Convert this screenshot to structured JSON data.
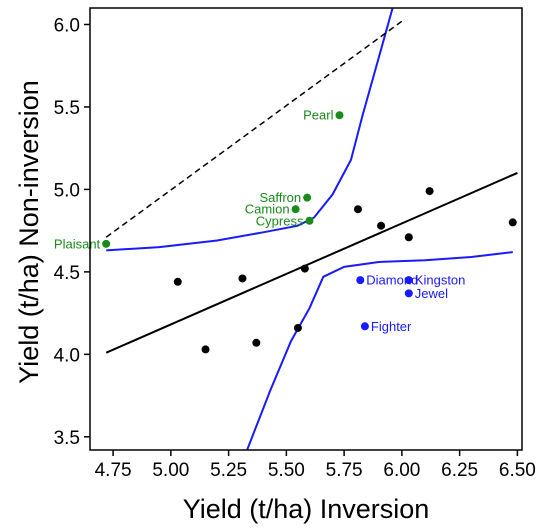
{
  "chart_data": {
    "type": "scatter",
    "title": "",
    "xlabel": "Yield (t/ha) Inversion",
    "ylabel": "Yield (t/ha) Non-inversion",
    "xlim": [
      4.65,
      6.52
    ],
    "ylim": [
      3.42,
      6.1
    ],
    "x_ticks": [
      "4.75",
      "5.00",
      "5.25",
      "5.50",
      "5.75",
      "6.00",
      "6.25",
      "6.50"
    ],
    "y_ticks": [
      "3.5",
      "4.0",
      "4.5",
      "5.0",
      "5.5",
      "6.0"
    ],
    "grid": false,
    "legend": "none",
    "colors": {
      "green": "#1a8a1a",
      "blue": "#1a1aff",
      "black": "#000000"
    },
    "labeled_points": [
      {
        "label": "Pearl",
        "x": 5.73,
        "y": 5.45,
        "group": "green",
        "anchor": "left"
      },
      {
        "label": "Saffron",
        "x": 5.59,
        "y": 4.95,
        "group": "green",
        "anchor": "left"
      },
      {
        "label": "Camion",
        "x": 5.54,
        "y": 4.88,
        "group": "green",
        "anchor": "left"
      },
      {
        "label": "Cypress",
        "x": 5.6,
        "y": 4.81,
        "group": "green",
        "anchor": "left"
      },
      {
        "label": "Plaisant",
        "x": 4.72,
        "y": 4.67,
        "group": "green",
        "anchor": "left"
      },
      {
        "label": "Diamond",
        "x": 5.82,
        "y": 4.45,
        "group": "blue",
        "anchor": "right"
      },
      {
        "label": "Kingston",
        "x": 6.03,
        "y": 4.45,
        "group": "blue",
        "anchor": "right"
      },
      {
        "label": "Jewel",
        "x": 6.03,
        "y": 4.37,
        "group": "blue",
        "anchor": "right"
      },
      {
        "label": "Fighter",
        "x": 5.84,
        "y": 4.17,
        "group": "blue",
        "anchor": "right"
      }
    ],
    "black_points": [
      {
        "x": 5.03,
        "y": 4.44
      },
      {
        "x": 5.15,
        "y": 4.03
      },
      {
        "x": 5.31,
        "y": 4.46
      },
      {
        "x": 5.37,
        "y": 4.07
      },
      {
        "x": 5.55,
        "y": 4.16
      },
      {
        "x": 5.58,
        "y": 4.52
      },
      {
        "x": 5.81,
        "y": 4.88
      },
      {
        "x": 5.91,
        "y": 4.78
      },
      {
        "x": 6.03,
        "y": 4.71
      },
      {
        "x": 6.12,
        "y": 4.99
      },
      {
        "x": 6.48,
        "y": 4.8
      }
    ],
    "regression_line": [
      [
        4.72,
        4.01
      ],
      [
        6.5,
        5.1
      ]
    ],
    "reference_line": [
      [
        4.72,
        4.71
      ],
      [
        6.0,
        6.02
      ]
    ],
    "upper_band": [
      [
        4.72,
        4.63
      ],
      [
        4.95,
        4.65
      ],
      [
        5.2,
        4.69
      ],
      [
        5.4,
        4.74
      ],
      [
        5.55,
        4.78
      ],
      [
        5.62,
        4.83
      ],
      [
        5.7,
        4.97
      ],
      [
        5.78,
        5.18
      ],
      [
        5.83,
        5.45
      ],
      [
        5.9,
        5.8
      ],
      [
        5.96,
        6.1
      ]
    ],
    "lower_band": [
      [
        5.33,
        3.42
      ],
      [
        5.43,
        3.78
      ],
      [
        5.52,
        4.08
      ],
      [
        5.6,
        4.28
      ],
      [
        5.66,
        4.47
      ],
      [
        5.75,
        4.53
      ],
      [
        5.9,
        4.56
      ],
      [
        6.1,
        4.57
      ],
      [
        6.3,
        4.59
      ],
      [
        6.48,
        4.62
      ]
    ]
  }
}
